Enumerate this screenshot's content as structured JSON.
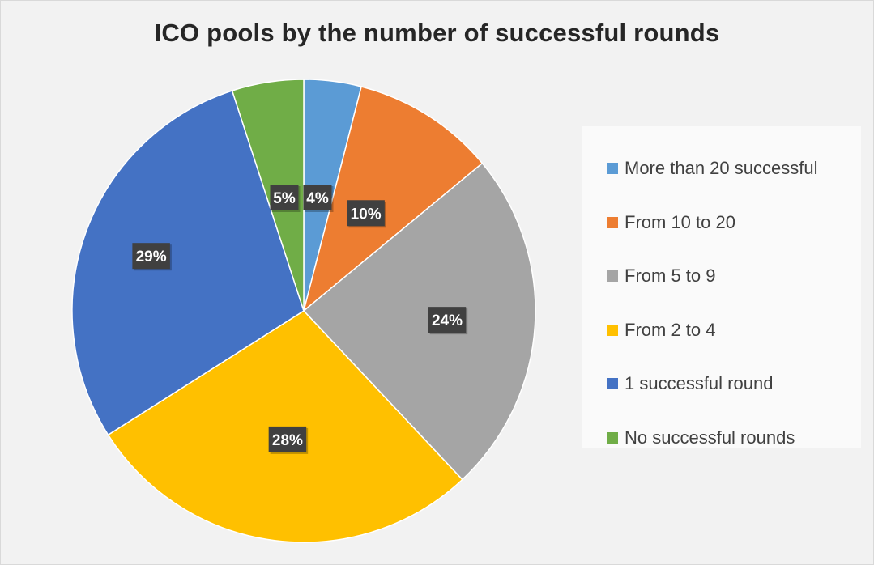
{
  "chart_data": {
    "type": "pie",
    "title": "ICO pools by the number of successful rounds",
    "legend_position": "right",
    "label_format": "percent",
    "start_angle_deg": 0,
    "direction": "clockwise",
    "slices": [
      {
        "name": "More than 20 successful",
        "value": 4,
        "label": "4%",
        "color": "#5b9bd5"
      },
      {
        "name": "From 10 to 20",
        "value": 10,
        "label": "10%",
        "color": "#ed7d31"
      },
      {
        "name": "From 5 to 9",
        "value": 24,
        "label": "24%",
        "color": "#a5a5a5"
      },
      {
        "name": "From 2 to 4",
        "value": 28,
        "label": "28%",
        "color": "#ffc000"
      },
      {
        "name": "1 successful round",
        "value": 29,
        "label": "29%",
        "color": "#4472c4"
      },
      {
        "name": "No successful rounds",
        "value": 5,
        "label": "5%",
        "color": "#70ad47"
      }
    ],
    "data_label_background": "#404040",
    "data_label_color": "#ffffff"
  }
}
